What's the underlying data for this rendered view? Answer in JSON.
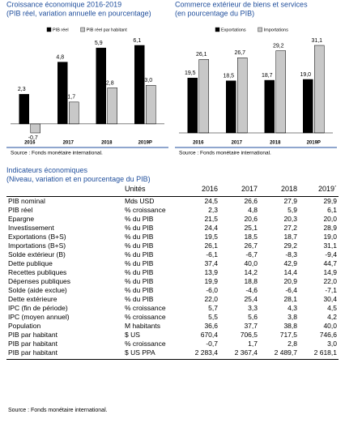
{
  "chart_data": [
    {
      "type": "bar",
      "title": "Croissance économique 2016-2019",
      "subtitle": "(PIB réel, variation annuelle en pourcentage)",
      "categories": [
        "2016",
        "2017",
        "2018",
        "2019P"
      ],
      "series": [
        {
          "name": "PIB réel",
          "color": "#000000",
          "values": [
            2.3,
            4.8,
            5.9,
            6.1
          ],
          "value_labels": [
            "2,3",
            "4,8",
            "5,9",
            "6,1"
          ]
        },
        {
          "name": "PIB réel par habitant",
          "color": "#c8c8c8",
          "values": [
            -0.7,
            1.7,
            2.8,
            3.0
          ],
          "value_labels": [
            "-0,7",
            "1,7",
            "2,8",
            "3,0"
          ]
        }
      ],
      "source": "Source :  Fonds monétaire international."
    },
    {
      "type": "bar",
      "title": "Commerce extérieur de biens et services",
      "subtitle": "(en pourcentage du PIB)",
      "categories": [
        "2016",
        "2017",
        "2018",
        "2019P"
      ],
      "series": [
        {
          "name": "Exportations",
          "color": "#000000",
          "values": [
            19.5,
            18.5,
            18.7,
            19.0
          ],
          "value_labels": [
            "19,5",
            "18,5",
            "18,7",
            "19,0"
          ]
        },
        {
          "name": "Importations",
          "color": "#c8c8c8",
          "values": [
            26.1,
            26.7,
            29.2,
            31.1
          ],
          "value_labels": [
            "26,1",
            "26,7",
            "29,2",
            "31,1"
          ]
        }
      ],
      "source": "Source :  Fonds monétaire international."
    }
  ],
  "table": {
    "title": "Indicateurs économiques",
    "subtitle": "(Niveau, variation et en pourcentage du PIB)",
    "header": [
      "",
      "Unités",
      "2016",
      "2017",
      "2018",
      "2019´"
    ],
    "rows": [
      [
        "PIB nominal",
        "Mds USD",
        "24,5",
        "26,6",
        "27,9",
        "29,9"
      ],
      [
        "PIB réel",
        "% croissance",
        "2,3",
        "4,8",
        "5,9",
        "6,1"
      ],
      [
        "Epargne",
        "% du PIB",
        "21,5",
        "20,6",
        "20,3",
        "20,0"
      ],
      [
        "Investissement",
        "% du PIB",
        "24,4",
        "25,1",
        "27,2",
        "28,9"
      ],
      [
        "Exportations (B+S)",
        "% du PIB",
        "19,5",
        "18,5",
        "18,7",
        "19,0"
      ],
      [
        "Importations (B+S)",
        "% du PIB",
        "26,1",
        "26,7",
        "29,2",
        "31,1"
      ],
      [
        "Solde extérieur (B)",
        "% du PIB",
        "-6,1",
        "-6,7",
        "-8,3",
        "-9,4"
      ],
      [
        "Dette publique",
        "% du PIB",
        "37,4",
        "40,0",
        "42,9",
        "44,7"
      ],
      [
        "Recettes publiques",
        "% du PIB",
        "13,9",
        "14,2",
        "14,4",
        "14,9"
      ],
      [
        "Dépenses  publiques",
        "% du PIB",
        "19,9",
        "18,8",
        "20,9",
        "22,0"
      ],
      [
        "Solde (aide exclue)",
        "% du PIB",
        "-6,0",
        "-4,6",
        "-6,4",
        "-7,1"
      ],
      [
        "Dette extérieure",
        "% du PIB",
        "22,0",
        "25,4",
        "28,1",
        "30,4"
      ],
      [
        "IPC (fin de période)",
        "% croissance",
        "5,7",
        "3,3",
        "4,3",
        "4,5"
      ],
      [
        "IPC (moyen annuel)",
        "% croissance",
        "5,5",
        "5,6",
        "3,8",
        "4,2"
      ],
      [
        "Population",
        "M habitants",
        "36,6",
        "37,7",
        "38,8",
        "40,0"
      ],
      [
        "PIB par habitant",
        "$ US",
        "670,4",
        "706,5",
        "717,5",
        "746,6"
      ],
      [
        "PIB par habitant",
        "% croissance",
        "-0,7",
        "1,7",
        "2,8",
        "3,0"
      ],
      [
        "PIB par habitant",
        "$ US PPA",
        "2 283,4",
        "2 367,4",
        "2 489,7",
        "2 618,1"
      ]
    ],
    "source": "Source :  Fonds monétaire international."
  }
}
